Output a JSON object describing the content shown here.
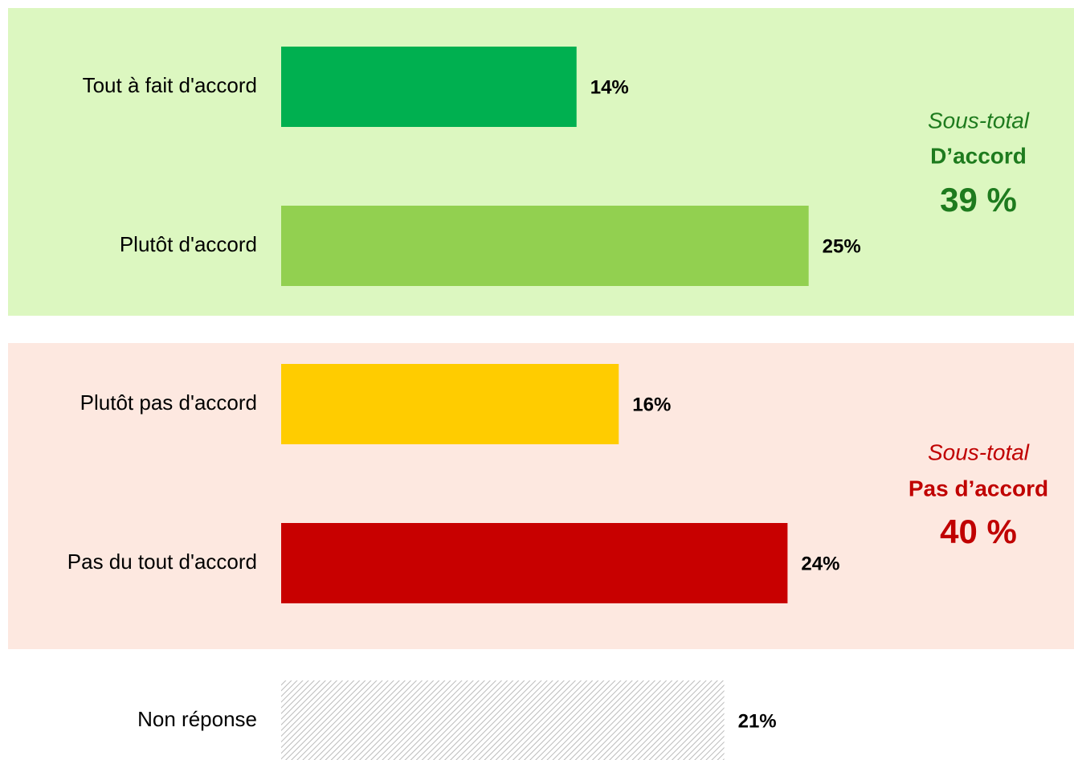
{
  "chart_data": {
    "type": "barh",
    "categories": [
      "Tout à fait d'accord",
      "Plutôt d'accord",
      "Plutôt pas d'accord",
      "Pas du tout d'accord",
      "Non réponse"
    ],
    "values": [
      14,
      25,
      16,
      24,
      21
    ],
    "value_labels": [
      "14%",
      "25%",
      "16%",
      "24%",
      "21%"
    ],
    "colors": [
      "#00b050",
      "#92d050",
      "#ffcc00",
      "#c80000",
      "hatch"
    ],
    "xlim": [
      0,
      30
    ],
    "annotations": [
      {
        "prefix": "Sous-total",
        "label": "D’accord",
        "total": "39 %",
        "color": "#1e7b1e"
      },
      {
        "prefix": "Sous-total",
        "label": "Pas d’accord",
        "total": "40 %",
        "color": "#c00000"
      }
    ]
  }
}
